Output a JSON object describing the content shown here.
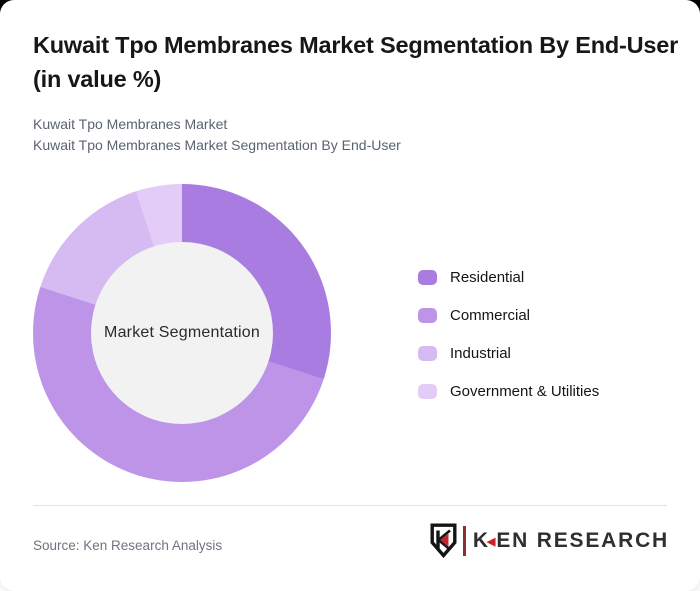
{
  "header": {
    "title": "Kuwait Tpo Membranes Market Segmentation By End-User (in value %)",
    "subtitles": [
      "Kuwait Tpo Membranes Market",
      "Kuwait Tpo Membranes Market Segmentation By End-User"
    ]
  },
  "chart_data": {
    "type": "pie",
    "subtype": "donut",
    "title": "Kuwait Tpo Membranes Market Segmentation By End-User (in value %)",
    "labels": [
      "Residential",
      "Commercial",
      "Industrial",
      "Government & Utilities"
    ],
    "values": [
      30,
      50,
      15,
      5
    ],
    "unit": "value %",
    "colors": [
      "#a97ce1",
      "#bd94e8",
      "#d6baf2",
      "#e3cdf8"
    ],
    "center_label": "Market Segmentation",
    "center_bg": "#f2f2f2",
    "start_angle_deg": 0,
    "direction": "clockwise",
    "legend_position": "right"
  },
  "footer": {
    "source": "Source: Ken Research Analysis",
    "logo": {
      "k": "K",
      "rest": "EN RESEARCH",
      "arrow": "◀"
    }
  }
}
